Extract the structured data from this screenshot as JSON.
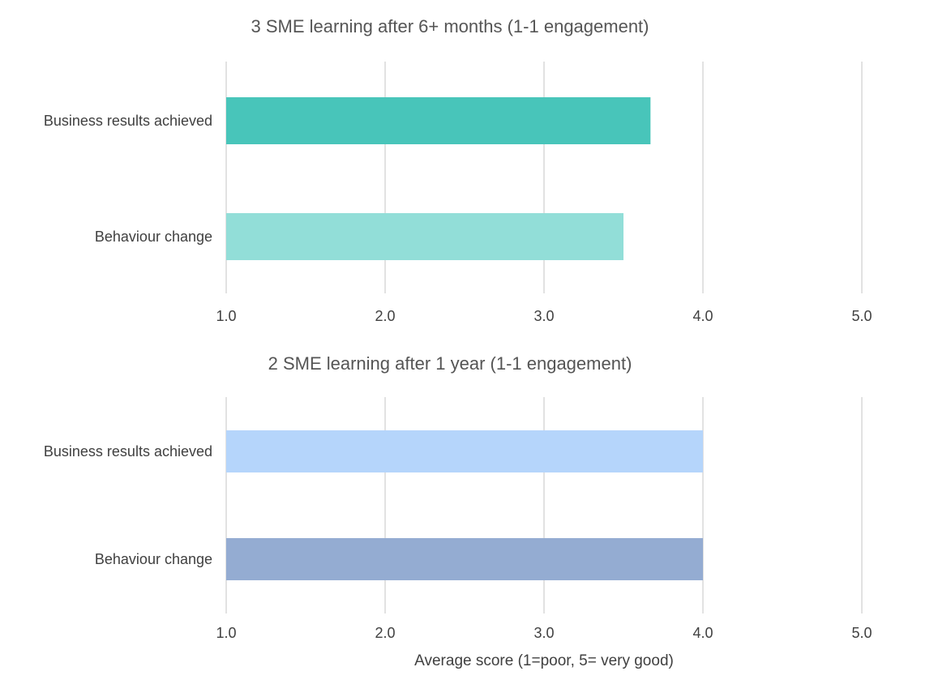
{
  "chart_data": [
    {
      "type": "bar",
      "orientation": "horizontal",
      "title": "3 SME learning after 6+ months (1-1 engagement)",
      "categories": [
        "Business results achieved",
        "Behaviour change"
      ],
      "values": [
        3.67,
        3.5
      ],
      "colors": [
        "#48C5BA",
        "#92DED8"
      ],
      "xlim": [
        1.0,
        5.0
      ],
      "ticks": [
        "1.0",
        "2.0",
        "3.0",
        "4.0",
        "5.0"
      ],
      "xlabel": "",
      "grid": true
    },
    {
      "type": "bar",
      "orientation": "horizontal",
      "title": "2 SME learning after 1 year (1-1 engagement)",
      "categories": [
        "Business results achieved",
        "Behaviour change"
      ],
      "values": [
        4.0,
        4.0
      ],
      "colors": [
        "#B5D5FB",
        "#94ACD2"
      ],
      "xlim": [
        1.0,
        5.0
      ],
      "ticks": [
        "1.0",
        "2.0",
        "3.0",
        "4.0",
        "5.0"
      ],
      "xlabel": "Average score (1=poor, 5= very good)",
      "grid": true
    }
  ]
}
